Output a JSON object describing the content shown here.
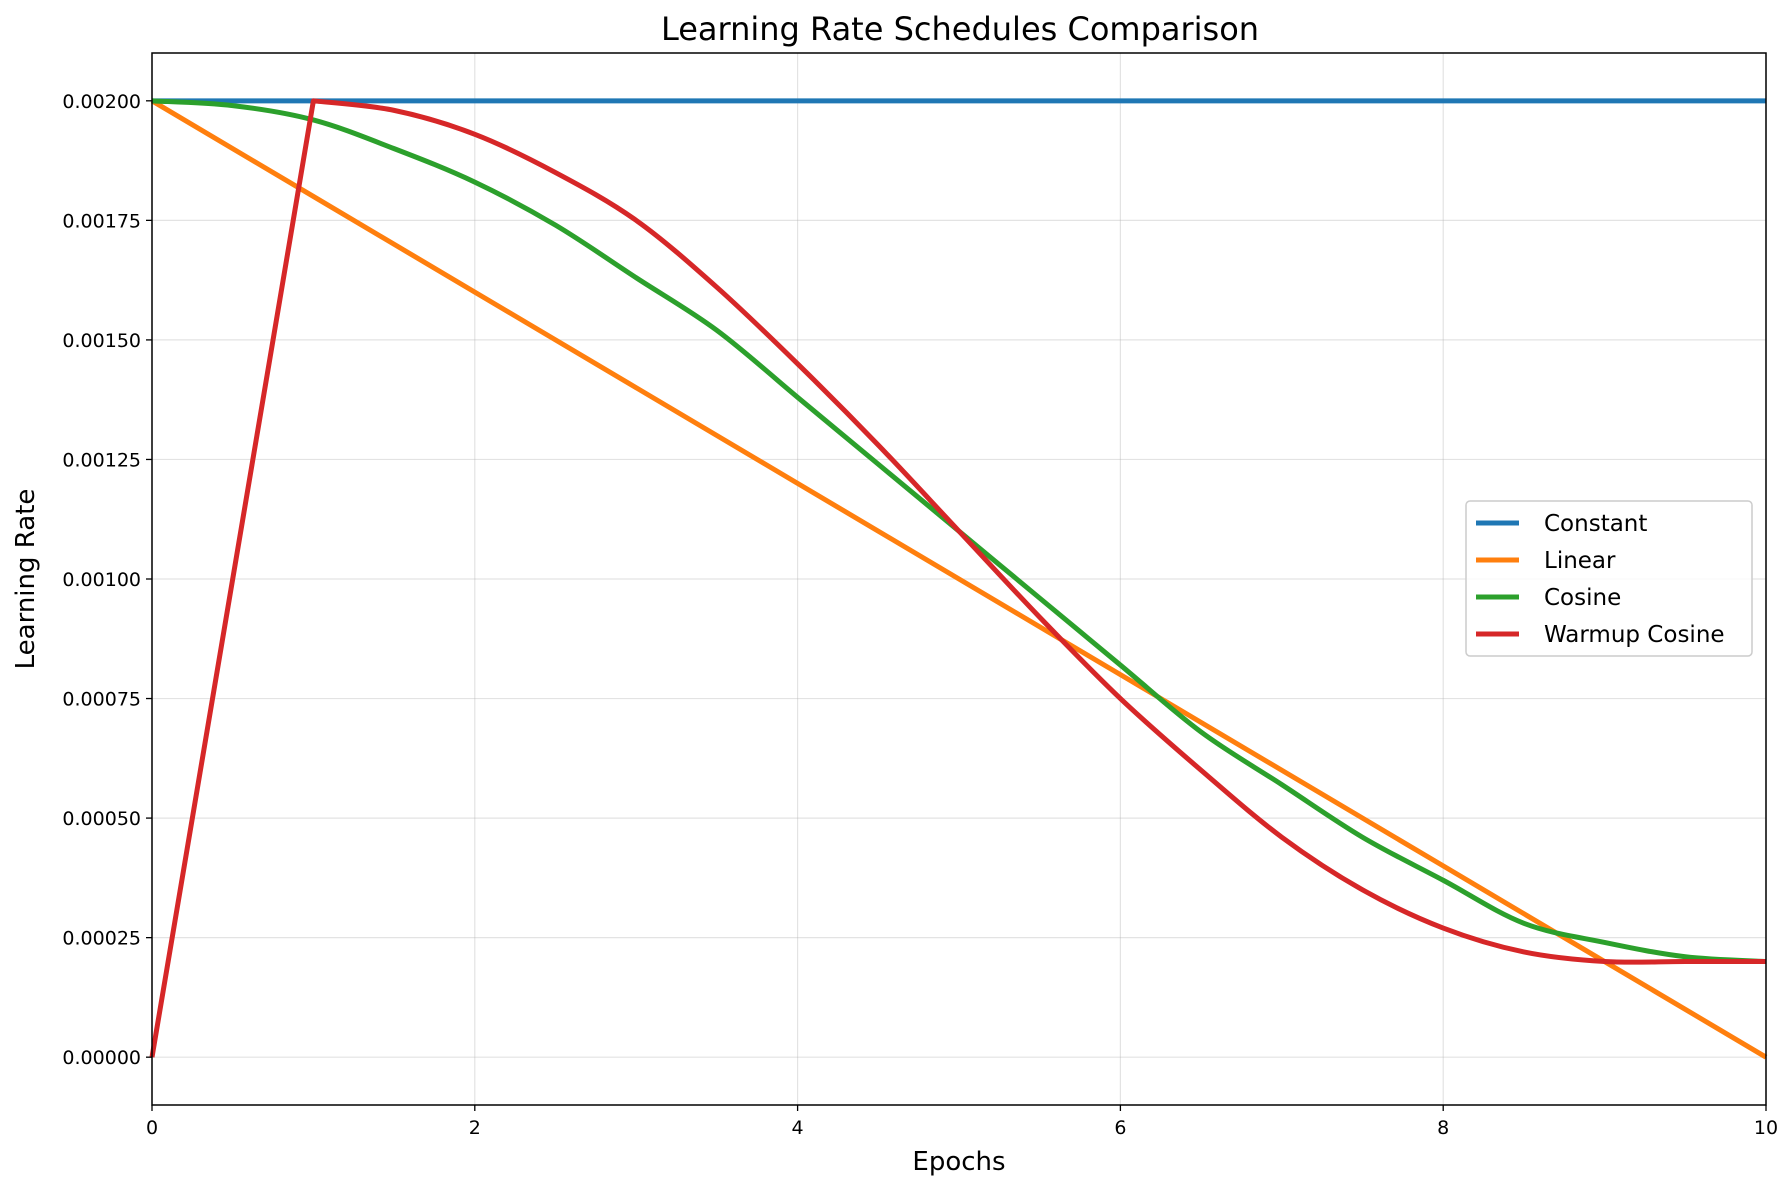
{
  "chart_data": {
    "type": "line",
    "title": "Learning Rate Schedules Comparison",
    "xlabel": "Epochs",
    "ylabel": "Learning Rate",
    "xlim": [
      0,
      10
    ],
    "ylim": [
      -0.0001,
      0.0021
    ],
    "x_ticks": [
      0,
      2,
      4,
      6,
      8,
      10
    ],
    "x_tick_labels": [
      "0",
      "2",
      "4",
      "6",
      "8",
      "10"
    ],
    "y_ticks": [
      0,
      0.00025,
      0.0005,
      0.00075,
      0.001,
      0.00125,
      0.0015,
      0.00175,
      0.002
    ],
    "y_tick_labels": [
      "0.00000",
      "0.00025",
      "0.00050",
      "0.00075",
      "0.00100",
      "0.00125",
      "0.00150",
      "0.00175",
      "0.00200"
    ],
    "grid": true,
    "legend_position": "center-right",
    "series": [
      {
        "name": "Constant",
        "color": "#1f77b4",
        "x": [
          0,
          1,
          2,
          3,
          4,
          5,
          6,
          7,
          8,
          9,
          10
        ],
        "values": [
          0.002,
          0.002,
          0.002,
          0.002,
          0.002,
          0.002,
          0.002,
          0.002,
          0.002,
          0.002,
          0.002
        ]
      },
      {
        "name": "Linear",
        "color": "#ff7f0e",
        "x": [
          0,
          1,
          2,
          3,
          4,
          5,
          6,
          7,
          8,
          9,
          10
        ],
        "values": [
          0.002,
          0.0018,
          0.0016,
          0.0014,
          0.0012,
          0.001,
          0.0008,
          0.0006,
          0.0004,
          0.0002,
          0.0
        ]
      },
      {
        "name": "Cosine",
        "color": "#2ca02c",
        "x": [
          0,
          0.5,
          1,
          1.5,
          2,
          2.5,
          3,
          3.5,
          4,
          4.5,
          5,
          5.5,
          6,
          6.5,
          7,
          7.5,
          8,
          8.5,
          9,
          9.5,
          10
        ],
        "values": [
          0.002,
          0.00199,
          0.00196,
          0.0019,
          0.00183,
          0.00174,
          0.00163,
          0.00152,
          0.00138,
          0.00124,
          0.0011,
          0.00096,
          0.00082,
          0.00068,
          0.00057,
          0.00046,
          0.00037,
          0.00028,
          0.00024,
          0.00021,
          0.0002
        ]
      },
      {
        "name": "Warmup Cosine",
        "color": "#d62728",
        "x": [
          0,
          1,
          1.5,
          2,
          2.5,
          3,
          3.5,
          4,
          4.5,
          5,
          5.5,
          6,
          6.5,
          7,
          7.5,
          8,
          8.5,
          9,
          9.5,
          10
        ],
        "values": [
          0.0,
          0.002,
          0.00198,
          0.00193,
          0.00185,
          0.00175,
          0.00161,
          0.00145,
          0.00128,
          0.0011,
          0.00092,
          0.00075,
          0.0006,
          0.00046,
          0.00035,
          0.00027,
          0.00022,
          0.0002,
          0.0002,
          0.0002
        ]
      }
    ]
  }
}
